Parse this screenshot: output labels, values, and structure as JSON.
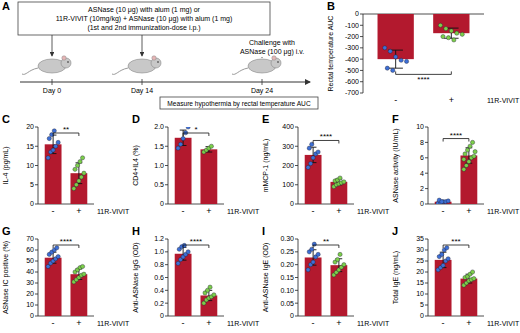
{
  "diagram": {
    "panel_label": "A",
    "box_text": [
      "ASNase (10 μg) with alum (1 mg) or",
      "11R-VIVIT (10mg/kg) + ASNase (10 μg) with alum (1 mg)",
      "(1st and 2nd immunization-dose i.p.)"
    ],
    "challenge_text": [
      "Challenge with",
      "ASNase (100 μg) i.v."
    ],
    "measure_text": "Measure hypothermia by rectal temperature AUC",
    "days": [
      "Day 0",
      "Day 14",
      "Day 24"
    ]
  },
  "chart_data": [
    {
      "type": "bar",
      "panel_label": "B",
      "y_label": "Rectal temperature AUC",
      "x_label": "11R-VIVIT",
      "categories": [
        "-",
        "+"
      ],
      "values": [
        -400,
        -170
      ],
      "errors": [
        80,
        45
      ],
      "points": [
        [
          -300,
          -330,
          -380,
          -410,
          -420,
          -480,
          -500
        ],
        [
          -100,
          -130,
          -150,
          -170,
          -180,
          -200,
          -210,
          -230
        ]
      ],
      "annotation": "****",
      "color": "#b3192e",
      "ylim": [
        -700,
        0
      ],
      "yticks": [
        -700,
        -600,
        -500,
        -400,
        -300,
        -200,
        -100,
        0
      ]
    },
    {
      "type": "bar",
      "panel_label": "C",
      "y_label": "IL-4 (pg/mL)",
      "x_label": "11R-VIVIT",
      "categories": [
        "-",
        "+"
      ],
      "values": [
        15.5,
        8
      ],
      "errors": [
        2.4,
        2.7
      ],
      "points": [
        [
          12,
          13.5,
          14,
          15,
          16,
          17,
          18,
          19
        ],
        [
          4,
          5,
          6,
          7,
          8,
          9,
          10,
          11,
          12
        ]
      ],
      "annotation": "**",
      "color": "#b3192e",
      "ylim": [
        0,
        20
      ],
      "yticks": [
        0,
        5,
        10,
        15,
        20
      ]
    },
    {
      "type": "bar",
      "panel_label": "D",
      "y_label": "CD4+IL4 (%)",
      "x_label": "11R-VIVIT",
      "categories": [
        "-",
        "+"
      ],
      "values": [
        1.72,
        1.42
      ],
      "errors": [
        0.2,
        0.07
      ],
      "points": [
        [
          1.45,
          1.55,
          1.7,
          1.85,
          2.0
        ],
        [
          1.35,
          1.4,
          1.45,
          1.5
        ]
      ],
      "annotation": "*",
      "color": "#b3192e",
      "ylim": [
        0,
        2
      ],
      "yticks": [
        0,
        0.5,
        {
          "value": 1,
          "label": "1.0"
        },
        1.5,
        {
          "value": 2,
          "label": "2.0"
        }
      ]
    },
    {
      "type": "bar",
      "panel_label": "E",
      "y_label": "mMCP-1 (ng/mL)",
      "x_label": "11R-VIVIT",
      "categories": [
        "-",
        "+"
      ],
      "values": [
        255,
        115
      ],
      "errors": [
        40,
        15
      ],
      "points": [
        [
          190,
          210,
          240,
          260,
          270,
          290,
          310
        ],
        [
          90,
          100,
          105,
          110,
          115,
          120,
          125,
          135
        ]
      ],
      "annotation": "****",
      "color": "#b3192e",
      "ylim": [
        0,
        400
      ],
      "yticks": [
        0,
        100,
        200,
        300,
        400
      ]
    },
    {
      "type": "bar",
      "panel_label": "F",
      "y_label": "ASNase activity (IU/mL)",
      "x_label": "11R-VIVIT",
      "categories": [
        "-",
        "+"
      ],
      "values": [
        0.3,
        6.3
      ],
      "errors": [
        0.15,
        1.0
      ],
      "points": [
        [
          0.1,
          0.2,
          0.3,
          0.3,
          0.4,
          0.5,
          0.3
        ],
        [
          4.5,
          5,
          5.5,
          6,
          6.2,
          6.5,
          7,
          7.5,
          8,
          6.8,
          5.8
        ]
      ],
      "annotation": "****",
      "color": "#b3192e",
      "ylim": [
        0,
        10
      ],
      "yticks": [
        0,
        2,
        4,
        6,
        8,
        10
      ]
    },
    {
      "type": "bar",
      "panel_label": "G",
      "y_label": "ASNase IC positive (%)",
      "x_label": "11R-VIVIT",
      "categories": [
        "-",
        "+"
      ],
      "values": [
        53,
        38
      ],
      "errors": [
        5,
        4.8
      ],
      "points": [
        [
          45,
          48,
          50,
          52,
          54,
          56,
          58,
          60,
          62
        ],
        [
          31,
          33,
          35,
          37,
          38,
          40,
          42,
          44,
          45
        ]
      ],
      "annotation": "****",
      "color": "#b3192e",
      "ylim": [
        0,
        70
      ],
      "yticks": [
        0,
        10,
        20,
        30,
        40,
        50,
        60,
        70
      ]
    },
    {
      "type": "bar",
      "panel_label": "H",
      "y_label": "Anti-ASNase IgG (OD)",
      "x_label": "11R-VIVIT",
      "categories": [
        "-",
        "+"
      ],
      "values": [
        0.97,
        0.32
      ],
      "errors": [
        0.1,
        0.08
      ],
      "points": [
        [
          0.82,
          0.88,
          0.92,
          0.96,
          1.0,
          1.04,
          1.08,
          1.1
        ],
        [
          0.2,
          0.25,
          0.28,
          0.3,
          0.33,
          0.36,
          0.4,
          0.45
        ]
      ],
      "annotation": "****",
      "color": "#b3192e",
      "ylim": [
        0,
        1.2
      ],
      "yticks": [
        0,
        0.2,
        0.4,
        0.6,
        0.8,
        {
          "value": 1,
          "label": "1.0"
        },
        1.2
      ]
    },
    {
      "type": "bar",
      "panel_label": "I",
      "y_label": "Anti-ASNase IgE (OD)",
      "x_label": "11R-VIVIT",
      "categories": [
        "-",
        "+"
      ],
      "values": [
        0.228,
        0.198
      ],
      "errors": [
        0.03,
        0.025
      ],
      "points": [
        [
          0.18,
          0.2,
          0.21,
          0.23,
          0.24,
          0.25,
          0.26,
          0.28
        ],
        [
          0.16,
          0.17,
          0.18,
          0.19,
          0.2,
          0.21,
          0.22,
          0.24
        ]
      ],
      "annotation": "**",
      "color": "#b3192e",
      "ylim": [
        0,
        0.3
      ],
      "yticks": [
        0,
        0.05,
        {
          "value": 0.1,
          "label": "0.10"
        },
        0.15,
        {
          "value": 0.2,
          "label": "0.20"
        },
        0.25,
        {
          "value": 0.3,
          "label": "0.30"
        }
      ]
    },
    {
      "type": "bar",
      "panel_label": "J",
      "y_label": "Total IgE (ng/mL)",
      "x_label": "11R-VIVIT",
      "categories": [
        "-",
        "+"
      ],
      "values": [
        25.5,
        17
      ],
      "errors": [
        3.5,
        2
      ],
      "points": [
        [
          21,
          22,
          23,
          25,
          26,
          27,
          28,
          30,
          31
        ],
        [
          14,
          15,
          16,
          16.5,
          17,
          17.5,
          18,
          19,
          20
        ]
      ],
      "annotation": "***",
      "color": "#b3192e",
      "ylim": [
        0,
        35
      ],
      "yticks": [
        0,
        5,
        10,
        15,
        20,
        25,
        30,
        35
      ]
    }
  ]
}
